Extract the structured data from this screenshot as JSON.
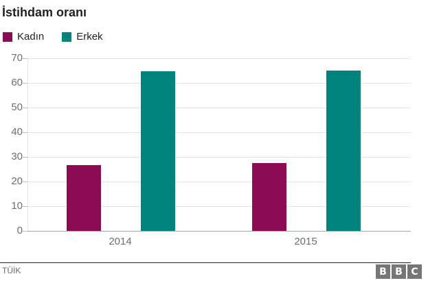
{
  "title": "İstihdam oranı",
  "legend": [
    {
      "label": "Kadın",
      "color": "#8B0B54"
    },
    {
      "label": "Erkek",
      "color": "#00847D"
    }
  ],
  "source": "TÜİK",
  "logo": {
    "letters": [
      "B",
      "B",
      "C"
    ]
  },
  "colors": {
    "kadin": "#8B0B54",
    "erkek": "#00847D",
    "grid": "#e4e4e4",
    "axis_text": "#6e6e6e",
    "title_text": "#222222"
  },
  "chart_data": {
    "type": "bar",
    "title": "İstihdam oranı",
    "categories": [
      "2014",
      "2015"
    ],
    "series": [
      {
        "name": "Kadın",
        "color": "#8B0B54",
        "values": [
          26.7,
          27.5
        ]
      },
      {
        "name": "Erkek",
        "color": "#00847D",
        "values": [
          64.8,
          65.0
        ]
      }
    ],
    "xlabel": "",
    "ylabel": "",
    "ylim": [
      0,
      70
    ],
    "ytick_step": 10,
    "yticks": [
      0,
      10,
      20,
      30,
      40,
      50,
      60,
      70
    ],
    "grid": true,
    "legend_position": "top-left",
    "source": "TÜİK"
  }
}
